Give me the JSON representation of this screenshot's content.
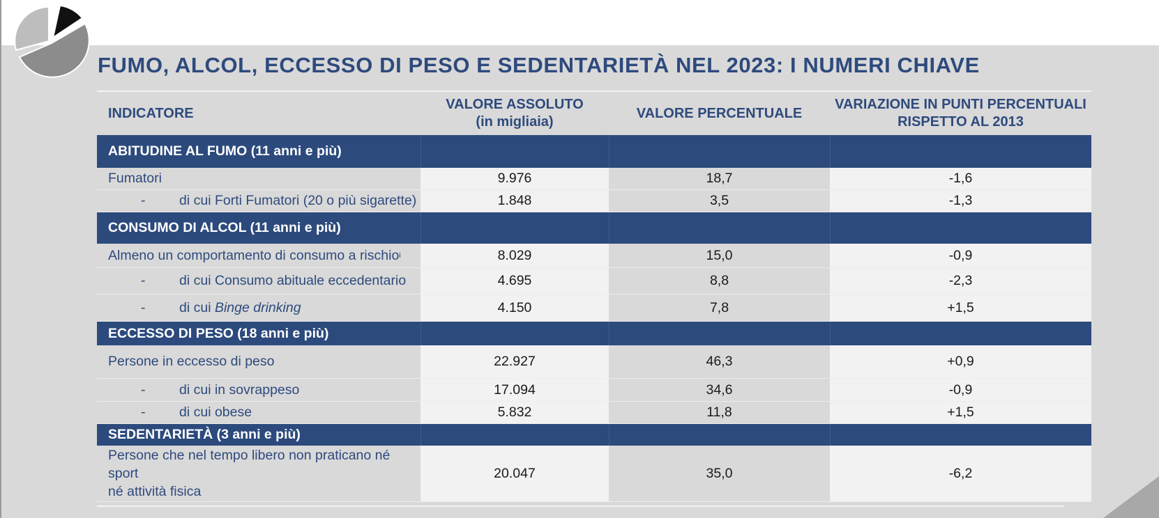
{
  "title": "FUMO, ALCOL, ECCESSO DI PESO E SEDENTARIETÀ NEL 2023: I NUMERI CHIAVE",
  "colors": {
    "title": "#2e4a7d",
    "section_band": "#2c4a7c",
    "light_cell": "#f2f2f2",
    "gray_cell": "#d9d9d9"
  },
  "icons": {
    "logo": "pie-chart-logo-icon",
    "corner": "corner-triangle-decoration"
  },
  "table": {
    "headers": {
      "indicatore": "INDICATORE",
      "valore_assoluto_1": "VALORE ASSOLUTO",
      "valore_assoluto_2": "(in migliaia)",
      "valore_percentuale": "VALORE PERCENTUALE",
      "variazione_1": "VARIAZIONE IN PUNTI PERCENTUALI",
      "variazione_2": "RISPETTO AL 2013"
    },
    "sections": {
      "fumo": {
        "label": "ABITUDINE AL FUMO (11 anni e più)",
        "rows": [
          {
            "dash": "",
            "label": "Fumatori",
            "abs": "9.976",
            "pct": "18,7",
            "var": "-1,6"
          },
          {
            "dash": "-",
            "label": "di cui Forti Fumatori (20 o più sigarette)",
            "abs": "1.848",
            "pct": "3,5",
            "var": "-1,3"
          }
        ]
      },
      "alcol": {
        "label": "CONSUMO DI ALCOL (11 anni e più)",
        "rows": [
          {
            "dash": "",
            "label": "Almeno un comportamento di consumo a rischio",
            "sup": "i",
            "abs": "8.029",
            "pct": "15,0",
            "var": "-0,9"
          },
          {
            "dash": "-",
            "label": "di cui Consumo abituale eccedentario",
            "abs": "4.695",
            "pct": "8,8",
            "var": "-2,3"
          },
          {
            "dash": "-",
            "label_prefix": "di cui ",
            "label_italic": "Binge drinking",
            "abs": "4.150",
            "pct": "7,8",
            "var": "+1,5"
          }
        ]
      },
      "peso": {
        "label": "ECCESSO DI PESO (18 anni e più)",
        "rows": [
          {
            "dash": "",
            "label": "Persone in eccesso di peso",
            "abs": "22.927",
            "pct": "46,3",
            "var": "+0,9"
          },
          {
            "dash": "-",
            "label": "di cui in sovrappeso",
            "abs": "17.094",
            "pct": "34,6",
            "var": "-0,9"
          },
          {
            "dash": "-",
            "label": "di cui obese",
            "abs": "5.832",
            "pct": "11,8",
            "var": "+1,5"
          }
        ]
      },
      "sedentarieta": {
        "label": "SEDENTARIETÀ (3 anni e più)",
        "rows": [
          {
            "dash": "",
            "label_line1": "Persone che nel tempo libero non praticano né sport",
            "label_line2": "né attività fisica",
            "abs": "20.047",
            "pct": "35,0",
            "var": "-6,2"
          }
        ]
      }
    }
  }
}
